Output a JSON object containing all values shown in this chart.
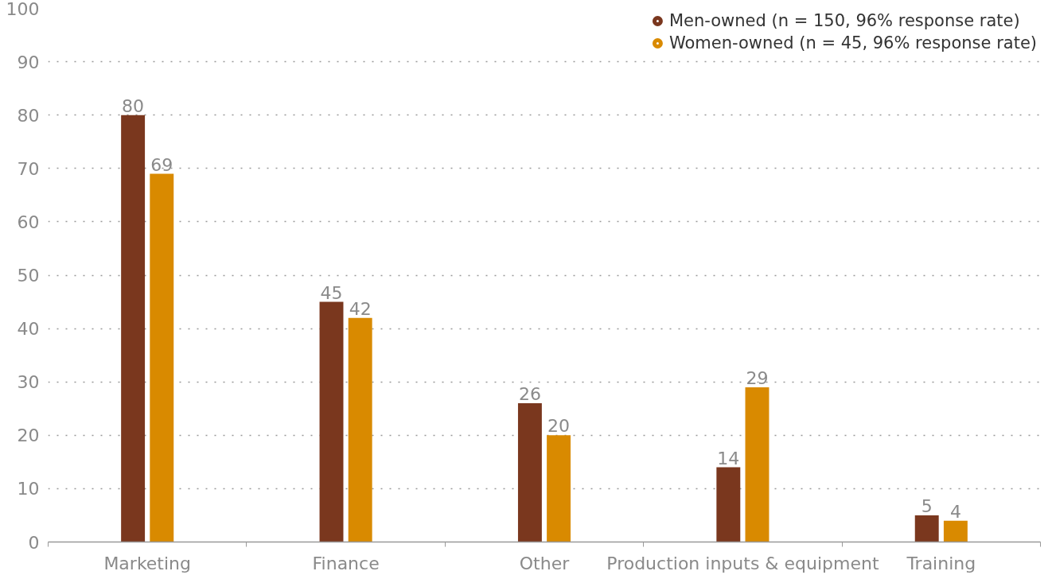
{
  "chart_data": {
    "type": "bar",
    "categories": [
      "Marketing",
      "Finance",
      "Other",
      "Production inputs & equipment",
      "Training"
    ],
    "series": [
      {
        "name": "Men-owned (n = 150, 96% response rate)",
        "color": "#7a371e",
        "values": [
          80,
          45,
          26,
          14,
          5
        ]
      },
      {
        "name": "Women-owned (n = 45, 96% response rate)",
        "color": "#d98a00",
        "values": [
          69,
          42,
          20,
          29,
          4
        ]
      }
    ],
    "ylim": [
      0,
      100
    ],
    "yticks": [
      0,
      10,
      20,
      30,
      40,
      50,
      60,
      70,
      80,
      90,
      100
    ],
    "grid": "y",
    "legend": "top right",
    "data_labels": true
  }
}
